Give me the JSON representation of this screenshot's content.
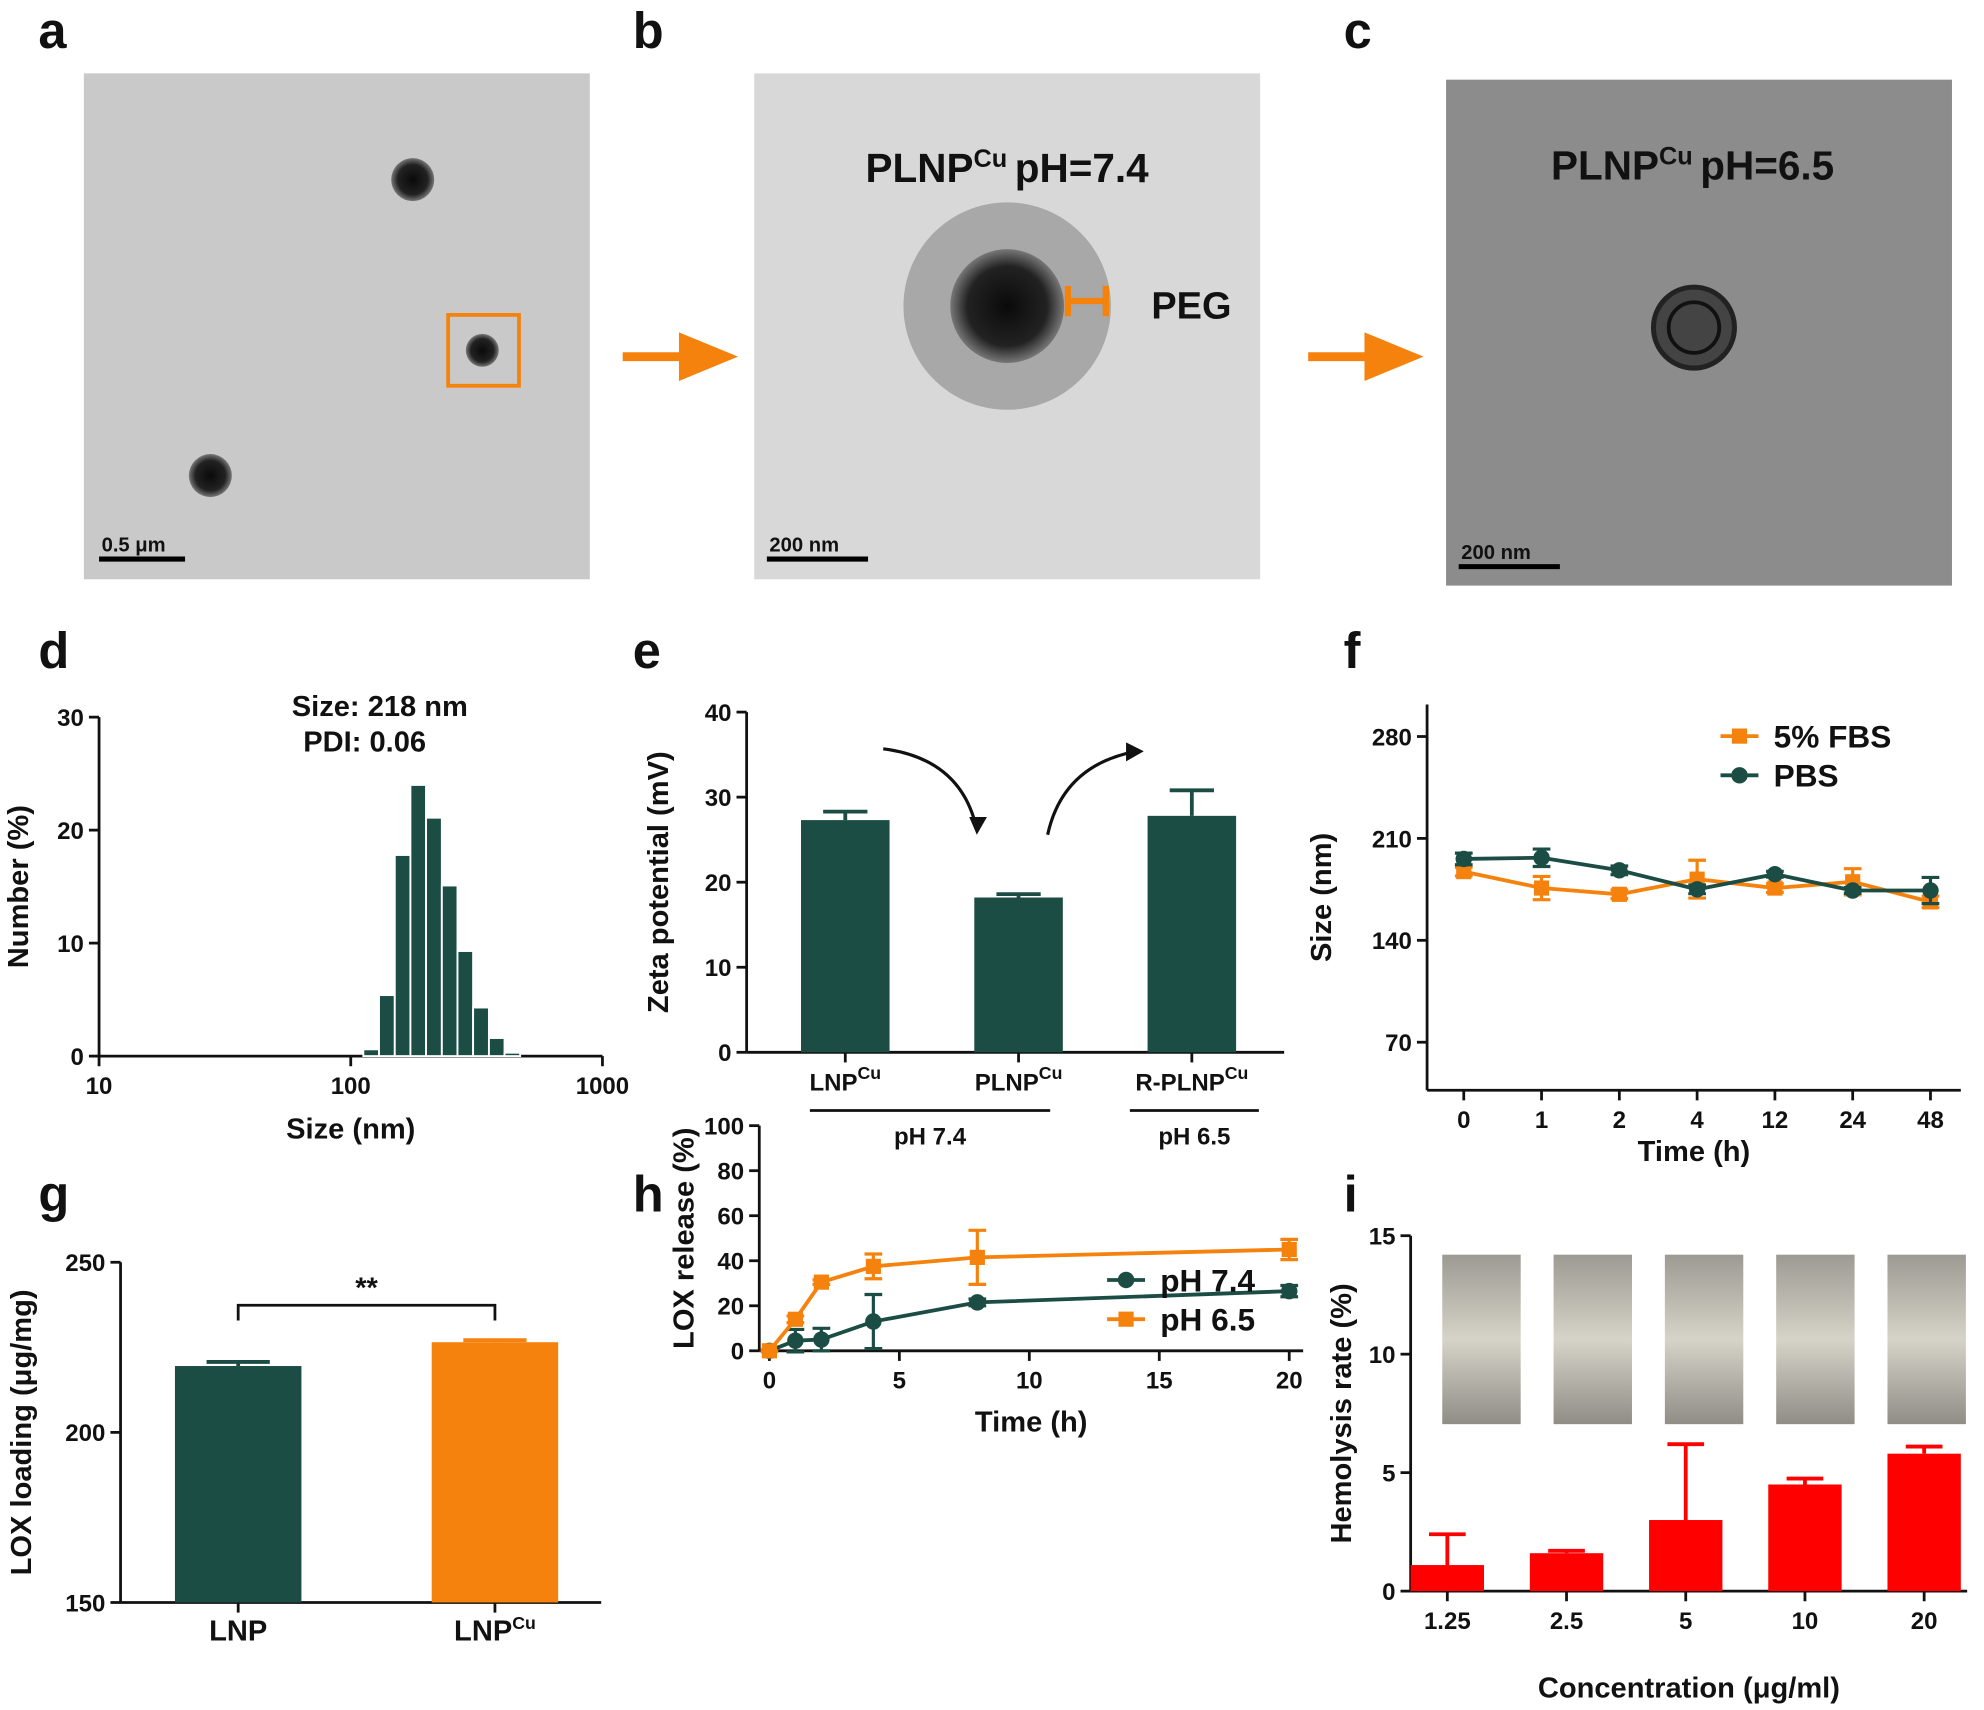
{
  "images": [
    {
      "panel": "a",
      "scale_bar": "0.5 μm"
    },
    {
      "panel": "b",
      "title": "PLNP",
      "title_sup": "Cu",
      "title_suffix": "pH=7.4",
      "annotation": "PEG",
      "scale_bar": "200 nm"
    },
    {
      "panel": "c",
      "title": "PLNP",
      "title_sup": "Cu",
      "title_suffix": "pH=6.5",
      "scale_bar": "200 nm"
    }
  ],
  "chart_data": [
    {
      "type": "histogram",
      "panel": "d",
      "x_label": "Size (nm)",
      "y_label": "Number (%)",
      "annotations": [
        "Size: 218 nm",
        "PDI: 0.06"
      ],
      "bins": [
        112.2,
        129.5,
        149.6,
        172.6,
        199.1,
        230.1,
        265.5,
        306.3,
        354.0,
        408.3,
        471.0
      ],
      "values": [
        0.6,
        5.4,
        17.8,
        24.0,
        21.1,
        15.1,
        9.3,
        4.3,
        1.6,
        0.3
      ],
      "color": "#1b4d45",
      "xscale": "log",
      "xlim": [
        10,
        1000
      ],
      "xticks": [
        10,
        100,
        1000
      ],
      "ylim": [
        0,
        30
      ],
      "yticks": [
        0,
        10,
        20,
        30
      ]
    },
    {
      "type": "bar",
      "panel": "e",
      "y_label": "Zeta potential (mV)",
      "categories": [
        "LNP",
        "PLNP",
        "R-PLNP"
      ],
      "category_superscripts": [
        "Cu",
        "Cu",
        "Cu"
      ],
      "groups": [
        "pH 7.4",
        "pH 6.5"
      ],
      "values": [
        27.3,
        18.2,
        27.8
      ],
      "errors": [
        1.0,
        0.4,
        3.0
      ],
      "color": "#1b4d45",
      "ylim": [
        0,
        40
      ],
      "yticks": [
        0,
        10,
        20,
        30,
        40
      ]
    },
    {
      "type": "line",
      "panel": "f",
      "x_label": "Time (h)",
      "y_label": "Size (nm)",
      "categories": [
        "0",
        "1",
        "2",
        "4",
        "12",
        "24",
        "48"
      ],
      "series": [
        {
          "name": "5% FBS",
          "color": "#f5820d",
          "marker": "square",
          "values": [
            187.2,
            175.9,
            171.6,
            182.0,
            175.9,
            180.2,
            166.4
          ],
          "errors": [
            3,
            8,
            3,
            13,
            3,
            9,
            4
          ]
        },
        {
          "name": "PBS",
          "color": "#1b4d45",
          "marker": "circle",
          "values": [
            195.9,
            196.7,
            188.1,
            175.0,
            185.4,
            174.2,
            174.2
          ],
          "errors": [
            4,
            6,
            3,
            3,
            2,
            2,
            9
          ]
        }
      ],
      "ylim": [
        37,
        302
      ],
      "yticks": [
        70,
        140,
        210,
        280
      ]
    },
    {
      "type": "bar",
      "panel": "g",
      "y_label": "LOX loading (μg/mg)",
      "categories": [
        "LNP",
        "LNP"
      ],
      "category_superscripts": [
        null,
        "Cu"
      ],
      "significance": "**",
      "values": [
        219.5,
        226.5
      ],
      "errors": [
        1.2,
        0.6
      ],
      "colors": [
        "#1b4d45",
        "#f5820d"
      ],
      "ylim": [
        150,
        250
      ],
      "yticks": [
        150,
        200,
        250
      ]
    },
    {
      "type": "line",
      "panel": "h",
      "x_label": "Time (h)",
      "y_label": "LOX release (%)",
      "x": [
        0,
        1,
        2,
        4,
        8,
        20
      ],
      "series": [
        {
          "name": "pH 7.4",
          "color": "#1b4d45",
          "marker": "circle",
          "values": [
            0,
            4.5,
            5,
            13,
            21.5,
            26.5
          ],
          "errors": [
            0,
            5,
            5,
            12,
            1.5,
            2.5
          ]
        },
        {
          "name": "pH 6.5",
          "color": "#f5820d",
          "marker": "square",
          "values": [
            0,
            14,
            30.5,
            37.5,
            41.5,
            45
          ],
          "errors": [
            0,
            1.5,
            1,
            5.5,
            12,
            4.5
          ]
        }
      ],
      "xlim": [
        0,
        20
      ],
      "xticks": [
        0,
        5,
        10,
        15,
        20
      ],
      "ylim": [
        0,
        100
      ],
      "yticks": [
        0,
        20,
        40,
        60,
        80,
        100
      ]
    },
    {
      "type": "bar",
      "panel": "i",
      "x_label": "Concentration (μg/ml)",
      "y_label": "Hemolysis rate (%)",
      "categories": [
        "1.25",
        "2.5",
        "5",
        "10",
        "20"
      ],
      "values": [
        1.1,
        1.6,
        3.0,
        4.5,
        5.8
      ],
      "errors": [
        1.3,
        0.1,
        3.2,
        0.25,
        0.3
      ],
      "color": "#ff0000",
      "ylim": [
        0,
        15
      ],
      "yticks": [
        0,
        5,
        10,
        15
      ]
    }
  ]
}
